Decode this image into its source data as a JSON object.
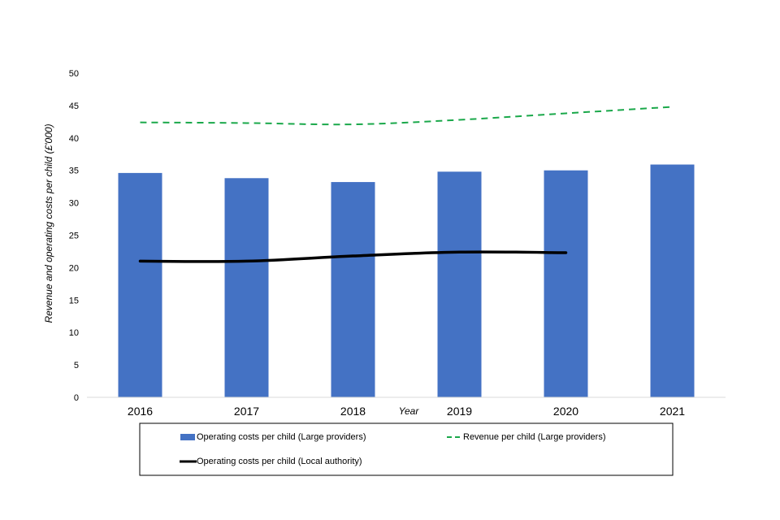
{
  "chart_data": {
    "type": "bar",
    "title": "",
    "xlabel": "Year",
    "ylabel": "Revenue and operating costs per child (£'000)",
    "ylim": [
      0,
      50
    ],
    "yticks": [
      0,
      5,
      10,
      15,
      20,
      25,
      30,
      35,
      40,
      45,
      50
    ],
    "categories": [
      "2016",
      "2017",
      "2018",
      "2019",
      "2020",
      "2021"
    ],
    "grid": false,
    "legend_position": "bottom",
    "series": [
      {
        "name": "Operating costs per child (Large providers)",
        "type": "bar",
        "color": "#4472C4",
        "values": [
          34.6,
          33.8,
          33.2,
          34.8,
          35.0,
          35.9
        ]
      },
      {
        "name": "Revenue per child (Large providers)",
        "type": "line",
        "style": "dashed",
        "color": "#1AA84A",
        "values": [
          42.4,
          42.3,
          42.1,
          42.8,
          43.8,
          44.8
        ]
      },
      {
        "name": "Operating costs per child (Local authority)",
        "type": "line",
        "style": "solid",
        "color": "#000000",
        "values": [
          21.0,
          21.0,
          21.8,
          22.4,
          22.3,
          null
        ]
      }
    ]
  }
}
